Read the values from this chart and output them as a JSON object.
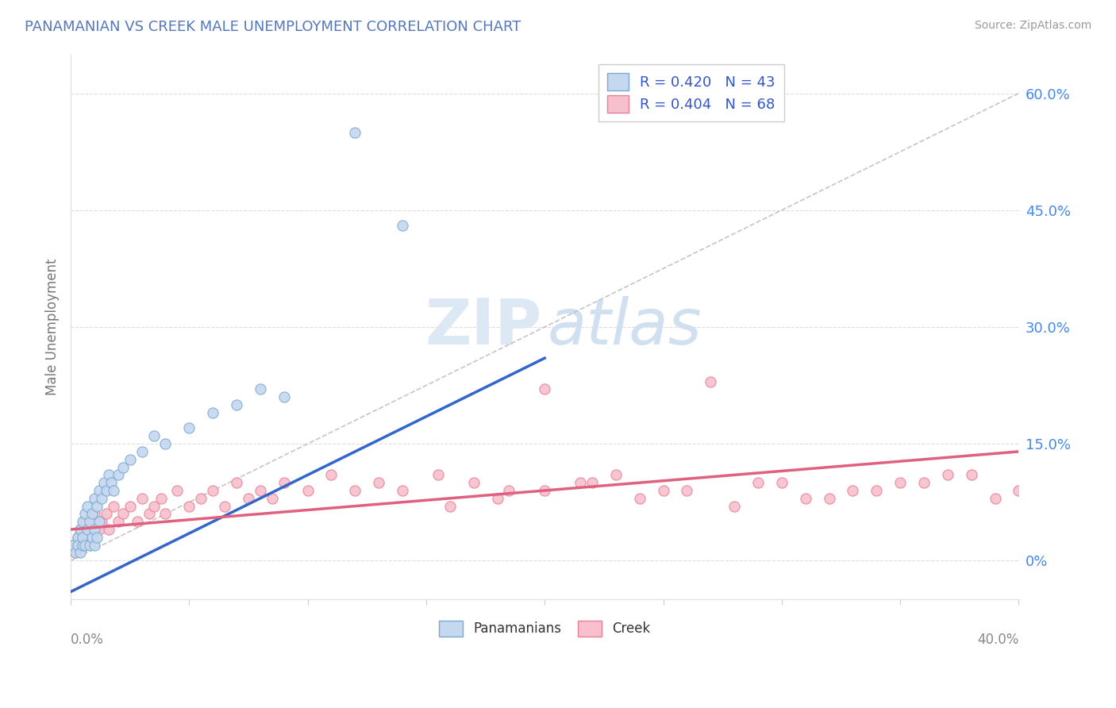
{
  "title": "PANAMANIAN VS CREEK MALE UNEMPLOYMENT CORRELATION CHART",
  "source": "Source: ZipAtlas.com",
  "ylabel": "Male Unemployment",
  "right_ytick_vals": [
    0.0,
    0.15,
    0.3,
    0.45,
    0.6
  ],
  "right_ytick_labels": [
    "0%",
    "15.0%",
    "30.0%",
    "45.0%",
    "60.0%"
  ],
  "xlim": [
    0.0,
    0.4
  ],
  "ylim": [
    -0.05,
    0.65
  ],
  "legend_blue_label": "R = 0.420   N = 43",
  "legend_pink_label": "R = 0.404   N = 68",
  "legend_bottom_blue": "Panamanians",
  "legend_bottom_pink": "Creek",
  "blue_face_color": "#C5D8F0",
  "blue_edge_color": "#7AAAD0",
  "pink_face_color": "#F8C0CC",
  "pink_edge_color": "#E8809A",
  "blue_line_color": "#3366CC",
  "pink_line_color": "#E06080",
  "grid_color": "#DDDDDD",
  "diag_color": "#BBBBBB",
  "blue_x": [
    0.001,
    0.002,
    0.003,
    0.003,
    0.004,
    0.004,
    0.005,
    0.005,
    0.005,
    0.006,
    0.006,
    0.007,
    0.007,
    0.008,
    0.008,
    0.009,
    0.009,
    0.01,
    0.01,
    0.01,
    0.011,
    0.011,
    0.012,
    0.012,
    0.013,
    0.014,
    0.015,
    0.016,
    0.017,
    0.018,
    0.02,
    0.022,
    0.025,
    0.03,
    0.035,
    0.04,
    0.05,
    0.06,
    0.07,
    0.08,
    0.09,
    0.12,
    0.14
  ],
  "blue_y": [
    0.02,
    0.01,
    0.03,
    0.02,
    0.04,
    0.01,
    0.05,
    0.02,
    0.03,
    0.06,
    0.02,
    0.07,
    0.04,
    0.05,
    0.02,
    0.06,
    0.03,
    0.08,
    0.04,
    0.02,
    0.07,
    0.03,
    0.09,
    0.05,
    0.08,
    0.1,
    0.09,
    0.11,
    0.1,
    0.09,
    0.11,
    0.12,
    0.13,
    0.14,
    0.16,
    0.15,
    0.17,
    0.19,
    0.2,
    0.22,
    0.21,
    0.55,
    0.43
  ],
  "pink_x": [
    0.001,
    0.002,
    0.003,
    0.004,
    0.004,
    0.005,
    0.006,
    0.006,
    0.007,
    0.008,
    0.009,
    0.01,
    0.012,
    0.013,
    0.015,
    0.016,
    0.018,
    0.02,
    0.022,
    0.025,
    0.028,
    0.03,
    0.033,
    0.035,
    0.038,
    0.04,
    0.045,
    0.05,
    0.055,
    0.06,
    0.065,
    0.07,
    0.075,
    0.08,
    0.085,
    0.09,
    0.1,
    0.11,
    0.12,
    0.13,
    0.14,
    0.155,
    0.17,
    0.185,
    0.2,
    0.215,
    0.23,
    0.25,
    0.27,
    0.29,
    0.31,
    0.33,
    0.35,
    0.37,
    0.39,
    0.4,
    0.38,
    0.36,
    0.34,
    0.32,
    0.3,
    0.28,
    0.26,
    0.24,
    0.22,
    0.2,
    0.18,
    0.16
  ],
  "pink_y": [
    0.02,
    0.01,
    0.03,
    0.02,
    0.04,
    0.03,
    0.05,
    0.02,
    0.04,
    0.05,
    0.03,
    0.06,
    0.04,
    0.05,
    0.06,
    0.04,
    0.07,
    0.05,
    0.06,
    0.07,
    0.05,
    0.08,
    0.06,
    0.07,
    0.08,
    0.06,
    0.09,
    0.07,
    0.08,
    0.09,
    0.07,
    0.1,
    0.08,
    0.09,
    0.08,
    0.1,
    0.09,
    0.11,
    0.09,
    0.1,
    0.09,
    0.11,
    0.1,
    0.09,
    0.22,
    0.1,
    0.11,
    0.09,
    0.23,
    0.1,
    0.08,
    0.09,
    0.1,
    0.11,
    0.08,
    0.09,
    0.11,
    0.1,
    0.09,
    0.08,
    0.1,
    0.07,
    0.09,
    0.08,
    0.1,
    0.09,
    0.08,
    0.07
  ],
  "blue_line_x": [
    0.0,
    0.2
  ],
  "blue_line_y": [
    -0.04,
    0.26
  ],
  "pink_line_x": [
    0.0,
    0.4
  ],
  "pink_line_y": [
    0.04,
    0.14
  ]
}
